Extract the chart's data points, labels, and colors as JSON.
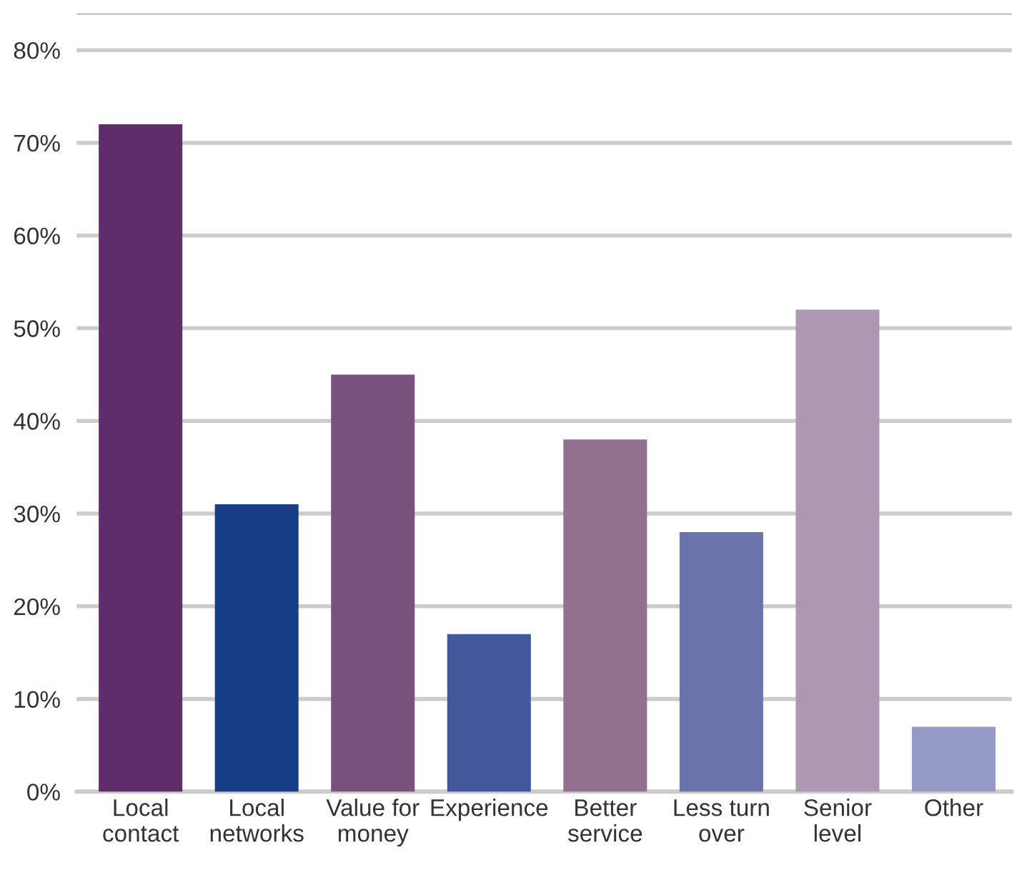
{
  "chart_data": {
    "type": "bar",
    "categories": [
      "Local\ncontact",
      "Local\nnetworks",
      "Value for\nmoney",
      "Experience",
      "Better\nservice",
      "Less turn\nover",
      "Senior\nlevel",
      "Other"
    ],
    "values": [
      72,
      31,
      45,
      17,
      38,
      28,
      52,
      7
    ],
    "colors": [
      "#5e2d6a",
      "#173d87",
      "#78517d",
      "#43589c",
      "#92708f",
      "#6b73ab",
      "#ae97b2",
      "#9499c6"
    ],
    "ylim": [
      0,
      84
    ],
    "yticks": [
      {
        "value": 0,
        "label": "0%"
      },
      {
        "value": 10,
        "label": "10%"
      },
      {
        "value": 20,
        "label": "20%"
      },
      {
        "value": 30,
        "label": "30%"
      },
      {
        "value": 40,
        "label": "40%"
      },
      {
        "value": 50,
        "label": "50%"
      },
      {
        "value": 60,
        "label": "60%"
      },
      {
        "value": 70,
        "label": "70%"
      },
      {
        "value": 80,
        "label": "80%"
      },
      {
        "value": 84,
        "label": null
      }
    ],
    "grid": "y"
  }
}
